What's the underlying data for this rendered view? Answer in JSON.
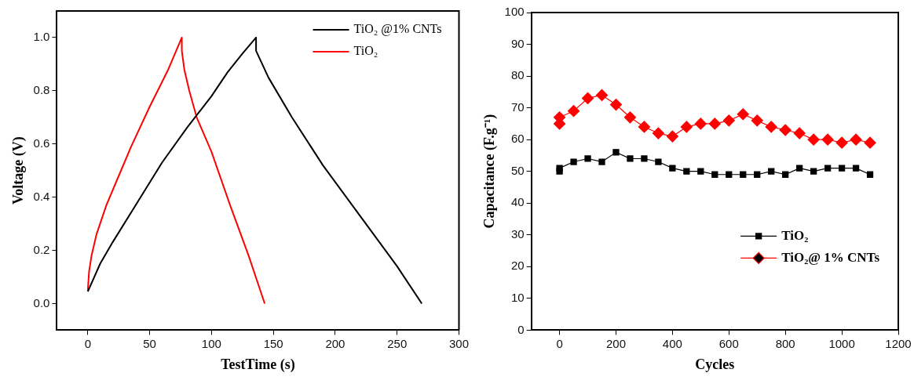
{
  "chart_data": [
    {
      "type": "line",
      "xlabel": "TestTime (s)",
      "ylabel": "Voltage (V)",
      "xlim": [
        -25,
        300
      ],
      "xticks": [
        0,
        50,
        100,
        150,
        200,
        250,
        300
      ],
      "ylim": [
        -0.1,
        1.1
      ],
      "yticks": [
        {
          "value": 0,
          "label": "0.0"
        },
        0.2,
        0.4,
        0.6,
        0.8,
        {
          "value": 1,
          "label": "1.0"
        }
      ],
      "grid": false,
      "legend": "top right",
      "marker": "none",
      "series": [
        {
          "name": "TiO₂ @1% CNTs",
          "color": "#000000",
          "x": [
            0,
            10,
            20,
            40,
            60,
            80,
            100,
            113,
            125,
            136,
            136,
            146,
            165,
            190,
            220,
            250,
            270
          ],
          "values": [
            0.045,
            0.15,
            0.23,
            0.38,
            0.53,
            0.66,
            0.78,
            0.87,
            0.94,
            1.0,
            0.95,
            0.85,
            0.7,
            0.52,
            0.33,
            0.14,
            0.0
          ]
        },
        {
          "name": "TiO₂",
          "color": "#ff0000",
          "x": [
            0,
            1,
            3,
            7,
            15,
            25,
            35,
            50,
            65,
            76,
            76,
            78,
            82,
            88,
            100,
            115,
            130,
            143
          ],
          "values": [
            0.05,
            0.12,
            0.18,
            0.26,
            0.37,
            0.48,
            0.59,
            0.74,
            0.88,
            1.0,
            0.95,
            0.88,
            0.8,
            0.7,
            0.57,
            0.37,
            0.18,
            0.0
          ]
        }
      ]
    },
    {
      "type": "line",
      "xlabel": "Cycles",
      "ylabel": "Capacitance (F.g⁻¹)",
      "xlim": [
        -100,
        1200
      ],
      "xticks": [
        0,
        200,
        400,
        600,
        800,
        1000,
        1200
      ],
      "ylim": [
        0,
        100
      ],
      "yticks": [
        0,
        10,
        20,
        30,
        40,
        50,
        60,
        70,
        80,
        90,
        100
      ],
      "grid": false,
      "legend": "bottom right",
      "x": [
        0,
        0,
        50,
        100,
        150,
        200,
        250,
        300,
        350,
        400,
        450,
        500,
        550,
        600,
        650,
        700,
        750,
        800,
        850,
        900,
        950,
        1000,
        1050,
        1100
      ],
      "series": [
        {
          "name": "TiO₂",
          "color": "#000000",
          "marker": "square",
          "values": [
            50,
            51,
            53,
            54,
            53,
            56,
            54,
            54,
            53,
            51,
            50,
            50,
            49,
            49,
            49,
            49,
            50,
            49,
            51,
            50,
            51,
            51,
            51,
            49
          ]
        },
        {
          "name": "TiO₂@ 1% CNTs",
          "color": "#ff0000",
          "marker": "diamond",
          "values": [
            65,
            67,
            69,
            73,
            74,
            71,
            67,
            64,
            62,
            61,
            64,
            65,
            65,
            66,
            68,
            66,
            64,
            63,
            62,
            60,
            60,
            59,
            60,
            59
          ]
        }
      ]
    }
  ]
}
